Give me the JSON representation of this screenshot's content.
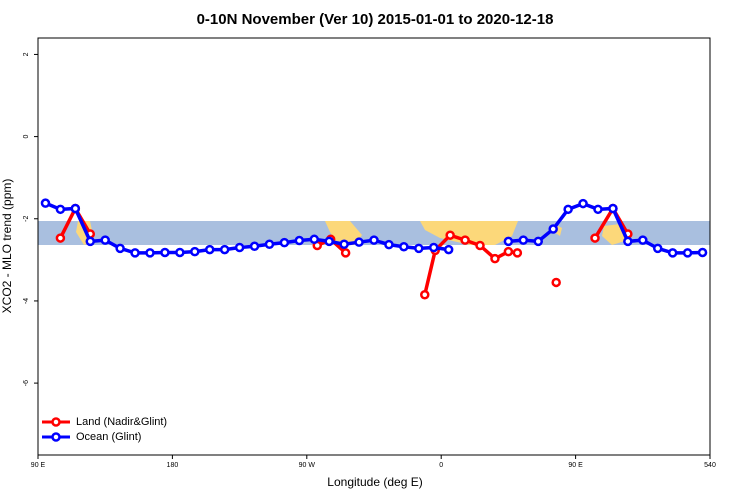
{
  "chart_data": {
    "type": "line",
    "title": "0-10N November (Ver 10)   2015-01-01 to 2020-12-18",
    "x_label": "Longitude (deg E)",
    "y_label": "XCO2 - MLO trend (ppm)",
    "xlim": [
      90,
      540
    ],
    "xticks": [
      {
        "value": 90,
        "label": "90 E"
      },
      180,
      {
        "value": 270,
        "label": "90 W"
      },
      {
        "value": 360,
        "label": "0"
      },
      {
        "value": 450,
        "label": "90 E"
      },
      540
    ],
    "ylim": [
      -7.75,
      2.4
    ],
    "yticks": [
      -6,
      -4,
      -2,
      0,
      2
    ],
    "legend": "bottom-left",
    "series": [
      {
        "name": "Land (Nadir&Glint)",
        "color": "#ff0000",
        "x": [
          105,
          115,
          125,
          null,
          277,
          286,
          296,
          null,
          349,
          356,
          366,
          376,
          386,
          396,
          405,
          411,
          null,
          437,
          null,
          463,
          475,
          485
        ],
        "values": [
          -2.47,
          -1.75,
          -2.37,
          null,
          -2.65,
          -2.5,
          -2.83,
          null,
          -3.85,
          -2.77,
          -2.4,
          -2.52,
          -2.65,
          -2.97,
          -2.8,
          -2.83,
          null,
          -3.55,
          null,
          -2.47,
          -1.75,
          -2.37
        ]
      },
      {
        "name": "Ocean (Glint)",
        "color": "#0000ff",
        "x": [
          95,
          105,
          115,
          125,
          135,
          145,
          155,
          165,
          175,
          185,
          195,
          205,
          215,
          225,
          235,
          245,
          255,
          265,
          275,
          285,
          295,
          305,
          315,
          325,
          335,
          345,
          355,
          365,
          375,
          385,
          395,
          405,
          415,
          425,
          435,
          445,
          455,
          465,
          475,
          485,
          495,
          505,
          515,
          525,
          535
        ],
        "values": [
          -1.62,
          -1.77,
          -1.75,
          -2.55,
          -2.52,
          -2.72,
          -2.83,
          -2.83,
          -2.82,
          -2.82,
          -2.8,
          -2.75,
          -2.75,
          -2.7,
          -2.67,
          -2.62,
          -2.58,
          -2.53,
          -2.5,
          -2.55,
          -2.62,
          -2.57,
          -2.52,
          -2.63,
          -2.68,
          -2.72,
          -2.7,
          -2.75,
          null,
          null,
          null,
          -2.55,
          -2.52,
          -2.55,
          -2.25,
          -1.77,
          -1.63,
          -1.77,
          -1.75,
          -2.55,
          -2.52,
          -2.72,
          -2.83,
          -2.83,
          -2.82
        ]
      }
    ]
  }
}
